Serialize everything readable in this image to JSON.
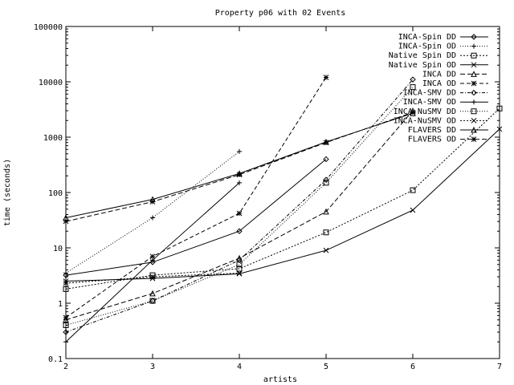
{
  "chart_data": {
    "type": "line",
    "title": "Property p06 with 02 Events",
    "xlabel": "artists",
    "ylabel": "time (seconds)",
    "x_ticks": [
      2,
      3,
      4,
      5,
      6,
      7
    ],
    "y_ticks": [
      "0.1",
      "1",
      "10",
      "100",
      "1000",
      "10000",
      "100000"
    ],
    "xlim": [
      2,
      7
    ],
    "ylim": [
      0.1,
      100000
    ],
    "y_scale": "log",
    "legend_position": "top-right",
    "series": [
      {
        "name": "INCA-Spin DD",
        "marker": "diamond",
        "dash": "",
        "color": "#000000",
        "points": [
          [
            2,
            3.2
          ],
          [
            3,
            5.5
          ],
          [
            4,
            20
          ],
          [
            5,
            400
          ]
        ]
      },
      {
        "name": "INCA-Spin OD",
        "marker": "plus",
        "dash": "1,2",
        "color": "#000000",
        "points": [
          [
            2,
            3.5
          ],
          [
            3,
            35
          ],
          [
            4,
            550
          ]
        ]
      },
      {
        "name": "Native Spin DD",
        "marker": "square",
        "dash": "2,2",
        "color": "#000000",
        "points": [
          [
            2,
            1.8
          ],
          [
            3,
            3.2
          ],
          [
            4,
            4.2
          ],
          [
            5,
            19
          ],
          [
            6,
            110
          ],
          [
            7,
            3300
          ]
        ]
      },
      {
        "name": "Native Spin OD",
        "marker": "x",
        "dash": "",
        "color": "#000000",
        "points": [
          [
            2,
            2.5
          ],
          [
            3,
            2.8
          ],
          [
            4,
            3.4
          ],
          [
            5,
            9
          ],
          [
            6,
            48
          ],
          [
            7,
            1400
          ]
        ]
      },
      {
        "name": "INCA DD",
        "marker": "triangle",
        "dash": "6,3",
        "color": "#000000",
        "points": [
          [
            2,
            0.5
          ],
          [
            3,
            1.5
          ],
          [
            4,
            6.5
          ],
          [
            5,
            45
          ],
          [
            6,
            3000
          ]
        ]
      },
      {
        "name": "INCA OD",
        "marker": "star",
        "dash": "5,3",
        "color": "#000000",
        "points": [
          [
            2,
            0.55
          ],
          [
            3,
            7
          ],
          [
            4,
            42
          ],
          [
            5,
            12000
          ]
        ]
      },
      {
        "name": "INCA-SMV DD",
        "marker": "diamond",
        "dash": "4,2,1,2",
        "color": "#000000",
        "points": [
          [
            2,
            0.3
          ],
          [
            3,
            1.1
          ],
          [
            4,
            6
          ],
          [
            5,
            170
          ],
          [
            6,
            11000
          ]
        ]
      },
      {
        "name": "INCA-SMV OD",
        "marker": "plus",
        "dash": "",
        "color": "#000000",
        "points": [
          [
            2,
            0.2
          ],
          [
            3,
            6
          ],
          [
            4,
            150
          ]
        ]
      },
      {
        "name": "INCA-NuSMV DD",
        "marker": "square",
        "dash": "1,2",
        "color": "#000000",
        "points": [
          [
            2,
            0.4
          ],
          [
            3,
            1.1
          ],
          [
            4,
            5
          ],
          [
            5,
            150
          ],
          [
            6,
            8000
          ]
        ]
      },
      {
        "name": "INCA-NuSMV OD",
        "marker": "x",
        "dash": "2,2",
        "color": "#000000",
        "points": [
          [
            2,
            2.3
          ],
          [
            3,
            3
          ],
          [
            4,
            3.5
          ]
        ]
      },
      {
        "name": "FLAVERS DD",
        "marker": "triangle",
        "dash": "",
        "color": "#000000",
        "points": [
          [
            2,
            35
          ],
          [
            3,
            75
          ],
          [
            4,
            220
          ],
          [
            5,
            820
          ],
          [
            6,
            2700
          ]
        ]
      },
      {
        "name": "FLAVERS OD",
        "marker": "star",
        "dash": "6,3",
        "color": "#000000",
        "points": [
          [
            2,
            30
          ],
          [
            3,
            68
          ],
          [
            4,
            210
          ],
          [
            5,
            800
          ],
          [
            6,
            2800
          ]
        ]
      }
    ]
  }
}
